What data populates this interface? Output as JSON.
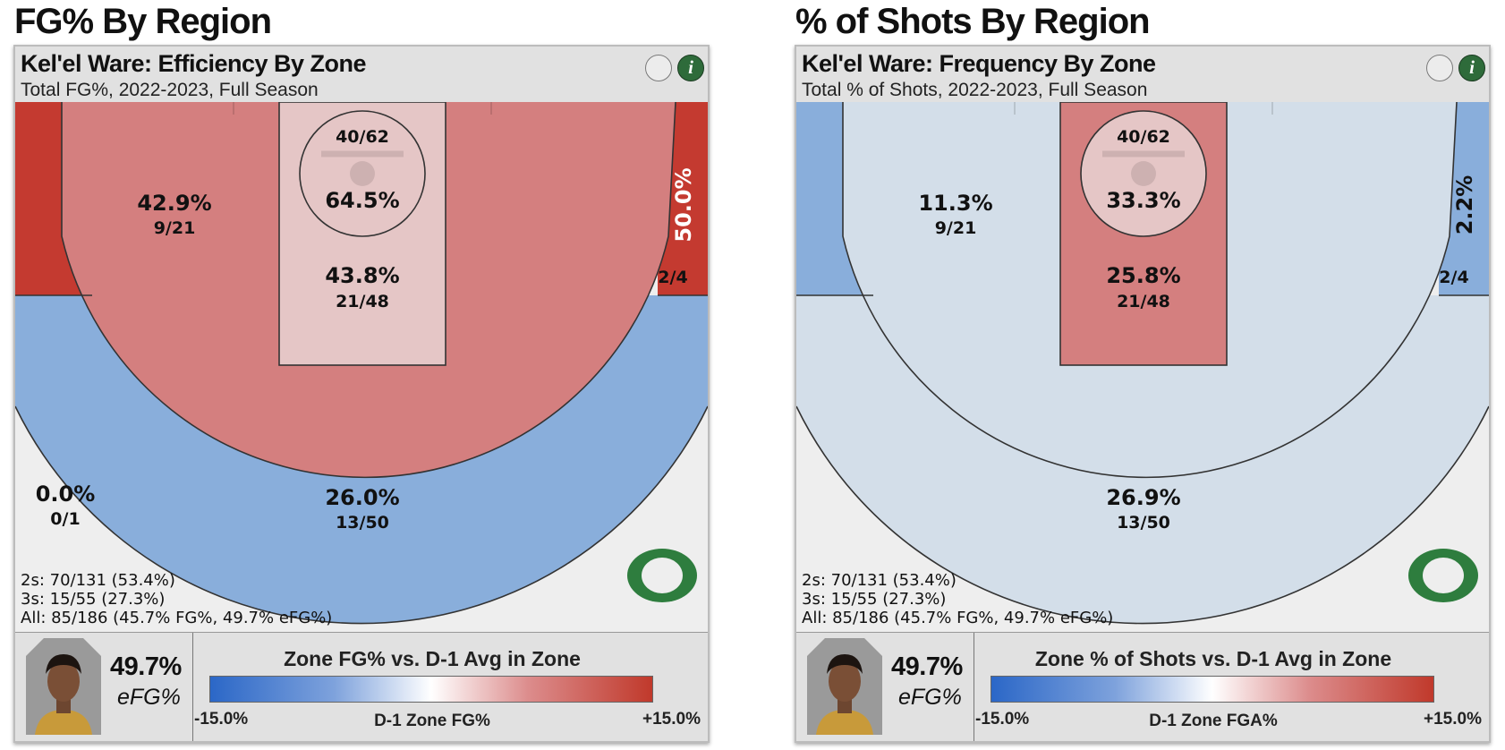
{
  "colors": {
    "red_dark": "#c43a30",
    "red_mid": "#d47f7f",
    "red_light": "#e5c6c6",
    "blue_mid": "#89aedb",
    "blue_light": "#d3dee9",
    "gray_bg": "#eeeeee",
    "oregon_green": "#2e7d3e"
  },
  "panels": [
    {
      "heading": "FG% By Region",
      "title": "Kel'el Ware: Efficiency By Zone",
      "subtitle": "Total FG%, 2022-2023, Full Season",
      "zones": {
        "rim": {
          "pct": "64.5%",
          "made_att": "40/62",
          "fill": "#e5c6c6"
        },
        "paint": {
          "pct": "43.8%",
          "made_att": "21/48",
          "fill": "#e5c6c6"
        },
        "midrange": {
          "pct": "42.9%",
          "made_att": "9/21",
          "fill": "#d47f7f"
        },
        "left_baseline": {
          "pct": "",
          "made_att": "",
          "fill": "#c43a30"
        },
        "right_baseline": {
          "pct": "50.0%",
          "made_att": "2/4",
          "fill": "#c43a30"
        },
        "three_arc": {
          "pct": "26.0%",
          "made_att": "13/50",
          "fill": "#89aedb"
        },
        "corner": {
          "pct": "0.0%",
          "made_att": "0/1",
          "fill": "#eeeeee"
        }
      },
      "summary": {
        "twos": "2s: 70/131 (53.4%)",
        "threes": "3s: 15/55 (27.3%)",
        "all": "All: 85/186 (45.7% FG%, 49.7% eFG%)"
      },
      "efg_value": "49.7%",
      "efg_label": "eFG%",
      "legend": {
        "title": "Zone FG% vs. D-1 Avg in Zone",
        "min": "-15.0%",
        "max": "+15.0%",
        "mid": "D-1 Zone FG%"
      },
      "info_label": "i"
    },
    {
      "heading": "% of Shots By Region",
      "title": "Kel'el Ware: Frequency By Zone",
      "subtitle": "Total % of Shots, 2022-2023, Full Season",
      "zones": {
        "rim": {
          "pct": "33.3%",
          "made_att": "40/62",
          "fill": "#e5c6c6"
        },
        "paint": {
          "pct": "25.8%",
          "made_att": "21/48",
          "fill": "#d47f7f"
        },
        "midrange": {
          "pct": "11.3%",
          "made_att": "9/21",
          "fill": "#d3dee9"
        },
        "left_baseline": {
          "pct": "",
          "made_att": "",
          "fill": "#89aedb"
        },
        "right_baseline": {
          "pct": "2.2%",
          "made_att": "2/4",
          "fill": "#89aedb"
        },
        "three_arc": {
          "pct": "26.9%",
          "made_att": "13/50",
          "fill": "#d3dee9"
        },
        "corner": {
          "pct": "",
          "made_att": "",
          "fill": "#eeeeee"
        }
      },
      "summary": {
        "twos": "2s: 70/131 (53.4%)",
        "threes": "3s: 15/55 (27.3%)",
        "all": "All: 85/186 (45.7% FG%, 49.7% eFG%)"
      },
      "efg_value": "49.7%",
      "efg_label": "eFG%",
      "legend": {
        "title": "Zone % of Shots vs. D-1 Avg in Zone",
        "min": "-15.0%",
        "max": "+15.0%",
        "mid": "D-1 Zone FGA%"
      },
      "info_label": "i"
    }
  ],
  "chart_data": [
    {
      "type": "heatmap",
      "title": "FG% By Region",
      "subtitle": "Kel'el Ware: Efficiency By Zone — Total FG%, 2022-2023, Full Season",
      "zones": [
        {
          "zone": "Rim",
          "value": 64.5,
          "made": 40,
          "attempts": 62
        },
        {
          "zone": "Paint",
          "value": 43.8,
          "made": 21,
          "attempts": 48
        },
        {
          "zone": "Mid-range",
          "value": 42.9,
          "made": 9,
          "attempts": 21
        },
        {
          "zone": "Right baseline",
          "value": 50.0,
          "made": 2,
          "attempts": 4
        },
        {
          "zone": "Above-break 3",
          "value": 26.0,
          "made": 13,
          "attempts": 50
        },
        {
          "zone": "Left corner 3",
          "value": 0.0,
          "made": 0,
          "attempts": 1
        }
      ],
      "color_scale": {
        "label": "Zone FG% vs. D-1 Avg in Zone",
        "min": -15.0,
        "max": 15.0,
        "center_label": "D-1 Zone FG%"
      }
    },
    {
      "type": "heatmap",
      "title": "% of Shots By Region",
      "subtitle": "Kel'el Ware: Frequency By Zone — Total % of Shots, 2022-2023, Full Season",
      "zones": [
        {
          "zone": "Rim",
          "value": 33.3,
          "made": 40,
          "attempts": 62
        },
        {
          "zone": "Paint",
          "value": 25.8,
          "made": 21,
          "attempts": 48
        },
        {
          "zone": "Mid-range",
          "value": 11.3,
          "made": 9,
          "attempts": 21
        },
        {
          "zone": "Right baseline",
          "value": 2.2,
          "made": 2,
          "attempts": 4
        },
        {
          "zone": "Above-break 3",
          "value": 26.9,
          "made": 13,
          "attempts": 50
        }
      ],
      "color_scale": {
        "label": "Zone % of Shots vs. D-1 Avg in Zone",
        "min": -15.0,
        "max": 15.0,
        "center_label": "D-1 Zone FGA%"
      }
    }
  ]
}
